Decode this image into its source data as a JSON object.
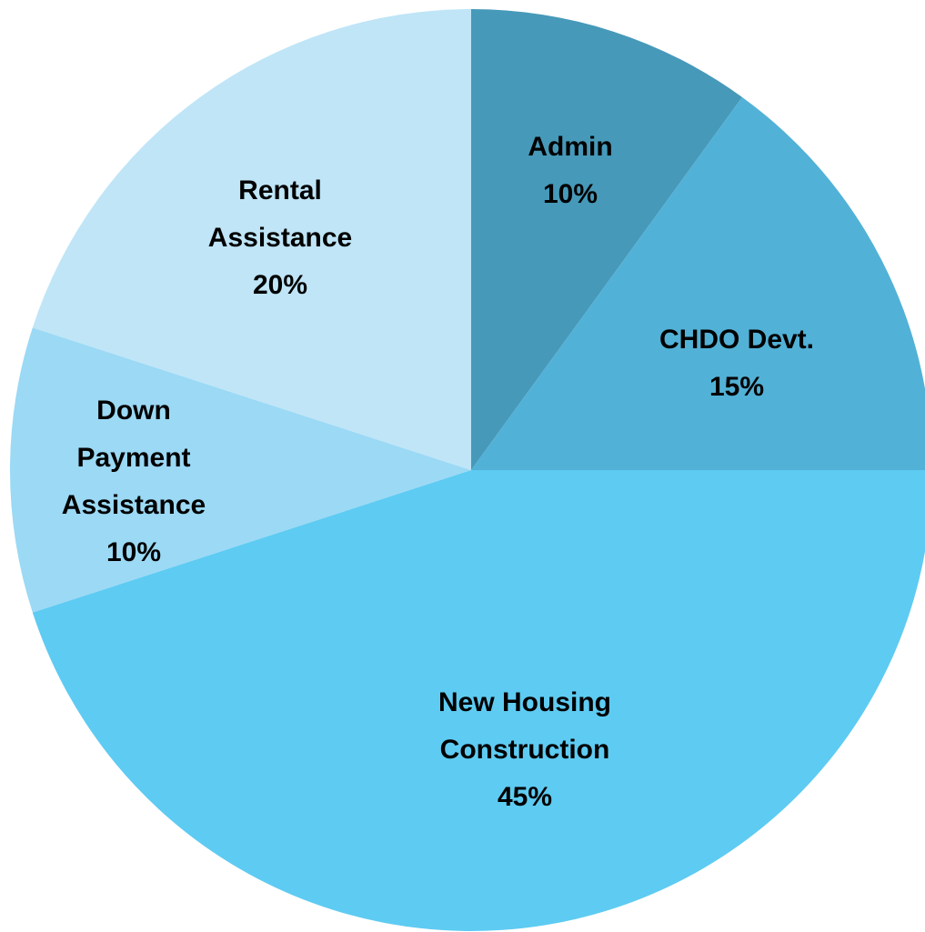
{
  "chart_data": {
    "type": "pie",
    "categories": [
      "Admin",
      "CHDO Devt.",
      "New Housing Construction",
      "Down Payment Assistance",
      "Rental Assistance"
    ],
    "values": [
      10,
      15,
      45,
      10,
      20
    ],
    "value_labels": [
      "10%",
      "15%",
      "45%",
      "10%",
      "20%"
    ],
    "colors": [
      "#4699b9",
      "#52b1d6",
      "#5ecbf2",
      "#9bd9f5",
      "#bfe5f7"
    ]
  }
}
